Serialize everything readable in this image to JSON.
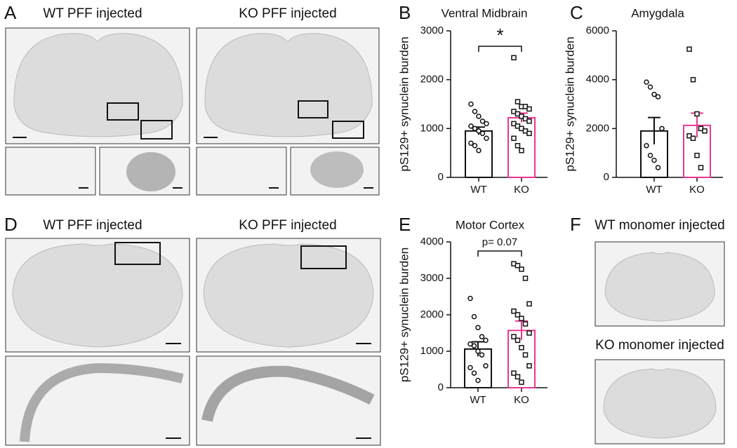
{
  "panels": {
    "A": {
      "letter": "A",
      "left_label": "WT PFF injected",
      "right_label": "KO PFF injected"
    },
    "B": {
      "letter": "B"
    },
    "C": {
      "letter": "C"
    },
    "D": {
      "letter": "D",
      "left_label": "WT PFF injected",
      "right_label": "KO PFF injected"
    },
    "E": {
      "letter": "E"
    },
    "F": {
      "letter": "F",
      "top_label": "WT monomer injected",
      "bottom_label": "KO monomer injected"
    }
  },
  "chart_data": [
    {
      "type": "bar",
      "title": "Ventral Midbrain",
      "y_label": "pS129+ synuclein burden",
      "categories": [
        "WT",
        "KO"
      ],
      "values": [
        950,
        1220
      ],
      "errors": [
        80,
        95
      ],
      "colors": [
        "#111111",
        "#e8388f"
      ],
      "markers": [
        "circle",
        "square"
      ],
      "points": [
        [
          1500,
          1350,
          1250,
          1150,
          1100,
          1050,
          1000,
          950,
          900,
          800,
          700,
          650,
          550
        ],
        [
          2450,
          1550,
          1450,
          1450,
          1400,
          1350,
          1300,
          1250,
          1200,
          1150,
          1100,
          1050,
          1000,
          950,
          900,
          800,
          650,
          550
        ]
      ],
      "annotation": "*",
      "ylim": [
        0,
        3000
      ],
      "yticks": [
        0,
        1000,
        2000,
        3000
      ]
    },
    {
      "type": "bar",
      "title": "Amygdala",
      "y_label": "pS129+ synuclein burden",
      "categories": [
        "WT",
        "KO"
      ],
      "values": [
        1900,
        2130
      ],
      "errors": [
        550,
        500
      ],
      "colors": [
        "#111111",
        "#e8388f"
      ],
      "markers": [
        "circle",
        "square"
      ],
      "points": [
        [
          3900,
          3700,
          3400,
          3300,
          2000,
          1300,
          900,
          700,
          400
        ],
        [
          5250,
          4000,
          2600,
          2000,
          1900,
          1700,
          1600,
          900,
          400
        ]
      ],
      "ylim": [
        0,
        6000
      ],
      "yticks": [
        0,
        2000,
        4000,
        6000
      ]
    },
    {
      "type": "bar",
      "title": "Motor Cortex",
      "y_label": "pS129+ synuclein burden",
      "categories": [
        "WT",
        "KO"
      ],
      "values": [
        1060,
        1570
      ],
      "errors": [
        200,
        260
      ],
      "colors": [
        "#111111",
        "#e8388f"
      ],
      "markers": [
        "circle",
        "square"
      ],
      "points": [
        [
          2450,
          1950,
          1650,
          1400,
          1300,
          1200,
          1150,
          1000,
          900,
          600,
          550,
          400,
          200
        ],
        [
          3400,
          3350,
          3250,
          3000,
          2300,
          2100,
          2000,
          1900,
          1750,
          1500,
          1400,
          1300,
          1100,
          900,
          600,
          400,
          300,
          150
        ]
      ],
      "annotation": "p= 0.07",
      "ylim": [
        0,
        4000
      ],
      "yticks": [
        0,
        1000,
        2000,
        3000,
        4000
      ]
    }
  ]
}
